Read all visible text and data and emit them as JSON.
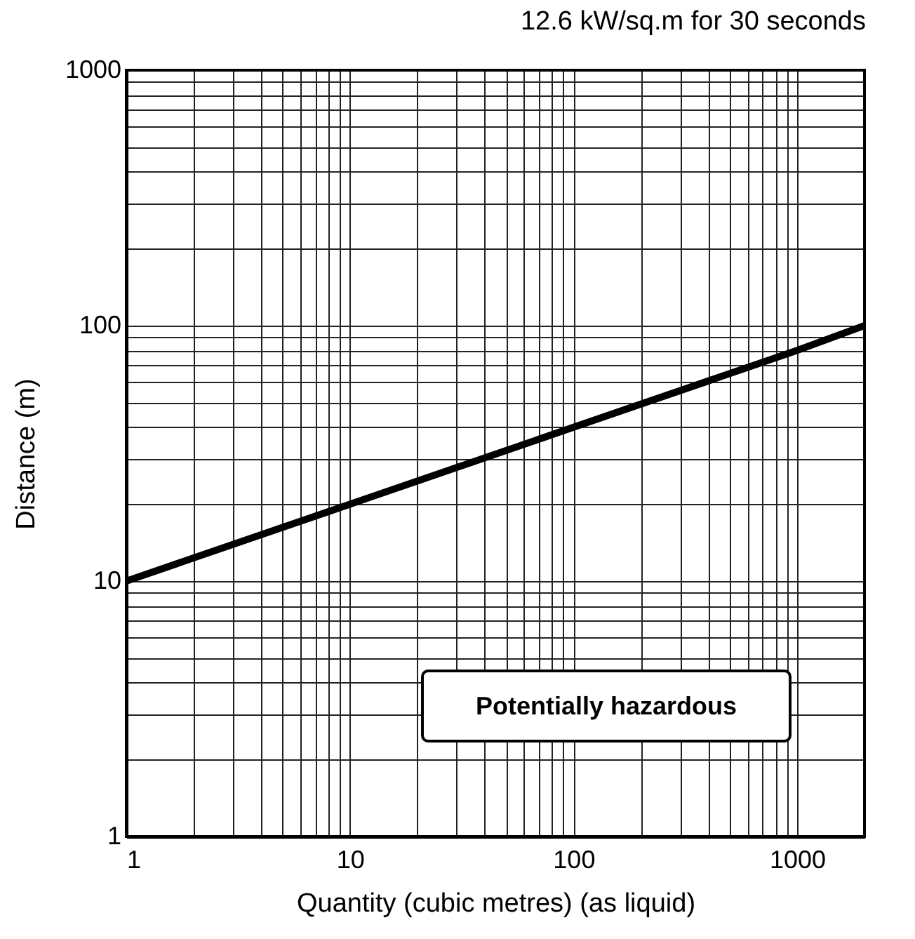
{
  "chart_data": {
    "type": "line",
    "title": "12.6 kW/sq.m for 30 seconds",
    "xlabel": "Quantity (cubic metres) (as liquid)",
    "ylabel": "Distance (m)",
    "x": [
      1,
      10,
      100,
      1000,
      2000
    ],
    "series": [
      {
        "color": "#000000",
        "values": [
          10,
          20,
          40,
          80,
          100
        ]
      }
    ],
    "log": "xy",
    "grid": true,
    "marker": "none",
    "line_style": "solid",
    "xlim": [
      1,
      2000
    ],
    "ylim": [
      1,
      1000
    ],
    "xticks": [
      1,
      {
        "value": 2,
        "label": null
      },
      {
        "value": 3,
        "label": null
      },
      {
        "value": 4,
        "label": null
      },
      {
        "value": 5,
        "label": null
      },
      {
        "value": 6,
        "label": null
      },
      {
        "value": 7,
        "label": null
      },
      {
        "value": 8,
        "label": null
      },
      {
        "value": 9,
        "label": null
      },
      10,
      {
        "value": 20,
        "label": null
      },
      {
        "value": 30,
        "label": null
      },
      {
        "value": 40,
        "label": null
      },
      {
        "value": 50,
        "label": null
      },
      {
        "value": 60,
        "label": null
      },
      {
        "value": 70,
        "label": null
      },
      {
        "value": 80,
        "label": null
      },
      {
        "value": 90,
        "label": null
      },
      100,
      {
        "value": 200,
        "label": null
      },
      {
        "value": 300,
        "label": null
      },
      {
        "value": 400,
        "label": null
      },
      {
        "value": 500,
        "label": null
      },
      {
        "value": 600,
        "label": null
      },
      {
        "value": 700,
        "label": null
      },
      {
        "value": 800,
        "label": null
      },
      {
        "value": 900,
        "label": null
      },
      1000
    ],
    "yticks": [
      1,
      {
        "value": 2,
        "label": null
      },
      {
        "value": 3,
        "label": null
      },
      {
        "value": 4,
        "label": null
      },
      {
        "value": 5,
        "label": null
      },
      {
        "value": 6,
        "label": null
      },
      {
        "value": 7,
        "label": null
      },
      {
        "value": 8,
        "label": null
      },
      {
        "value": 9,
        "label": null
      },
      10,
      {
        "value": 20,
        "label": null
      },
      {
        "value": 30,
        "label": null
      },
      {
        "value": 40,
        "label": null
      },
      {
        "value": 50,
        "label": null
      },
      {
        "value": 60,
        "label": null
      },
      {
        "value": 70,
        "label": null
      },
      {
        "value": 80,
        "label": null
      },
      {
        "value": 90,
        "label": null
      },
      100,
      {
        "value": 200,
        "label": null
      },
      {
        "value": 300,
        "label": null
      },
      {
        "value": 400,
        "label": null
      },
      {
        "value": 500,
        "label": null
      },
      {
        "value": 600,
        "label": null
      },
      {
        "value": 700,
        "label": null
      },
      {
        "value": 800,
        "label": null
      },
      {
        "value": 900,
        "label": null
      },
      1000
    ],
    "annotations": [
      "Potentially hazardous"
    ]
  }
}
